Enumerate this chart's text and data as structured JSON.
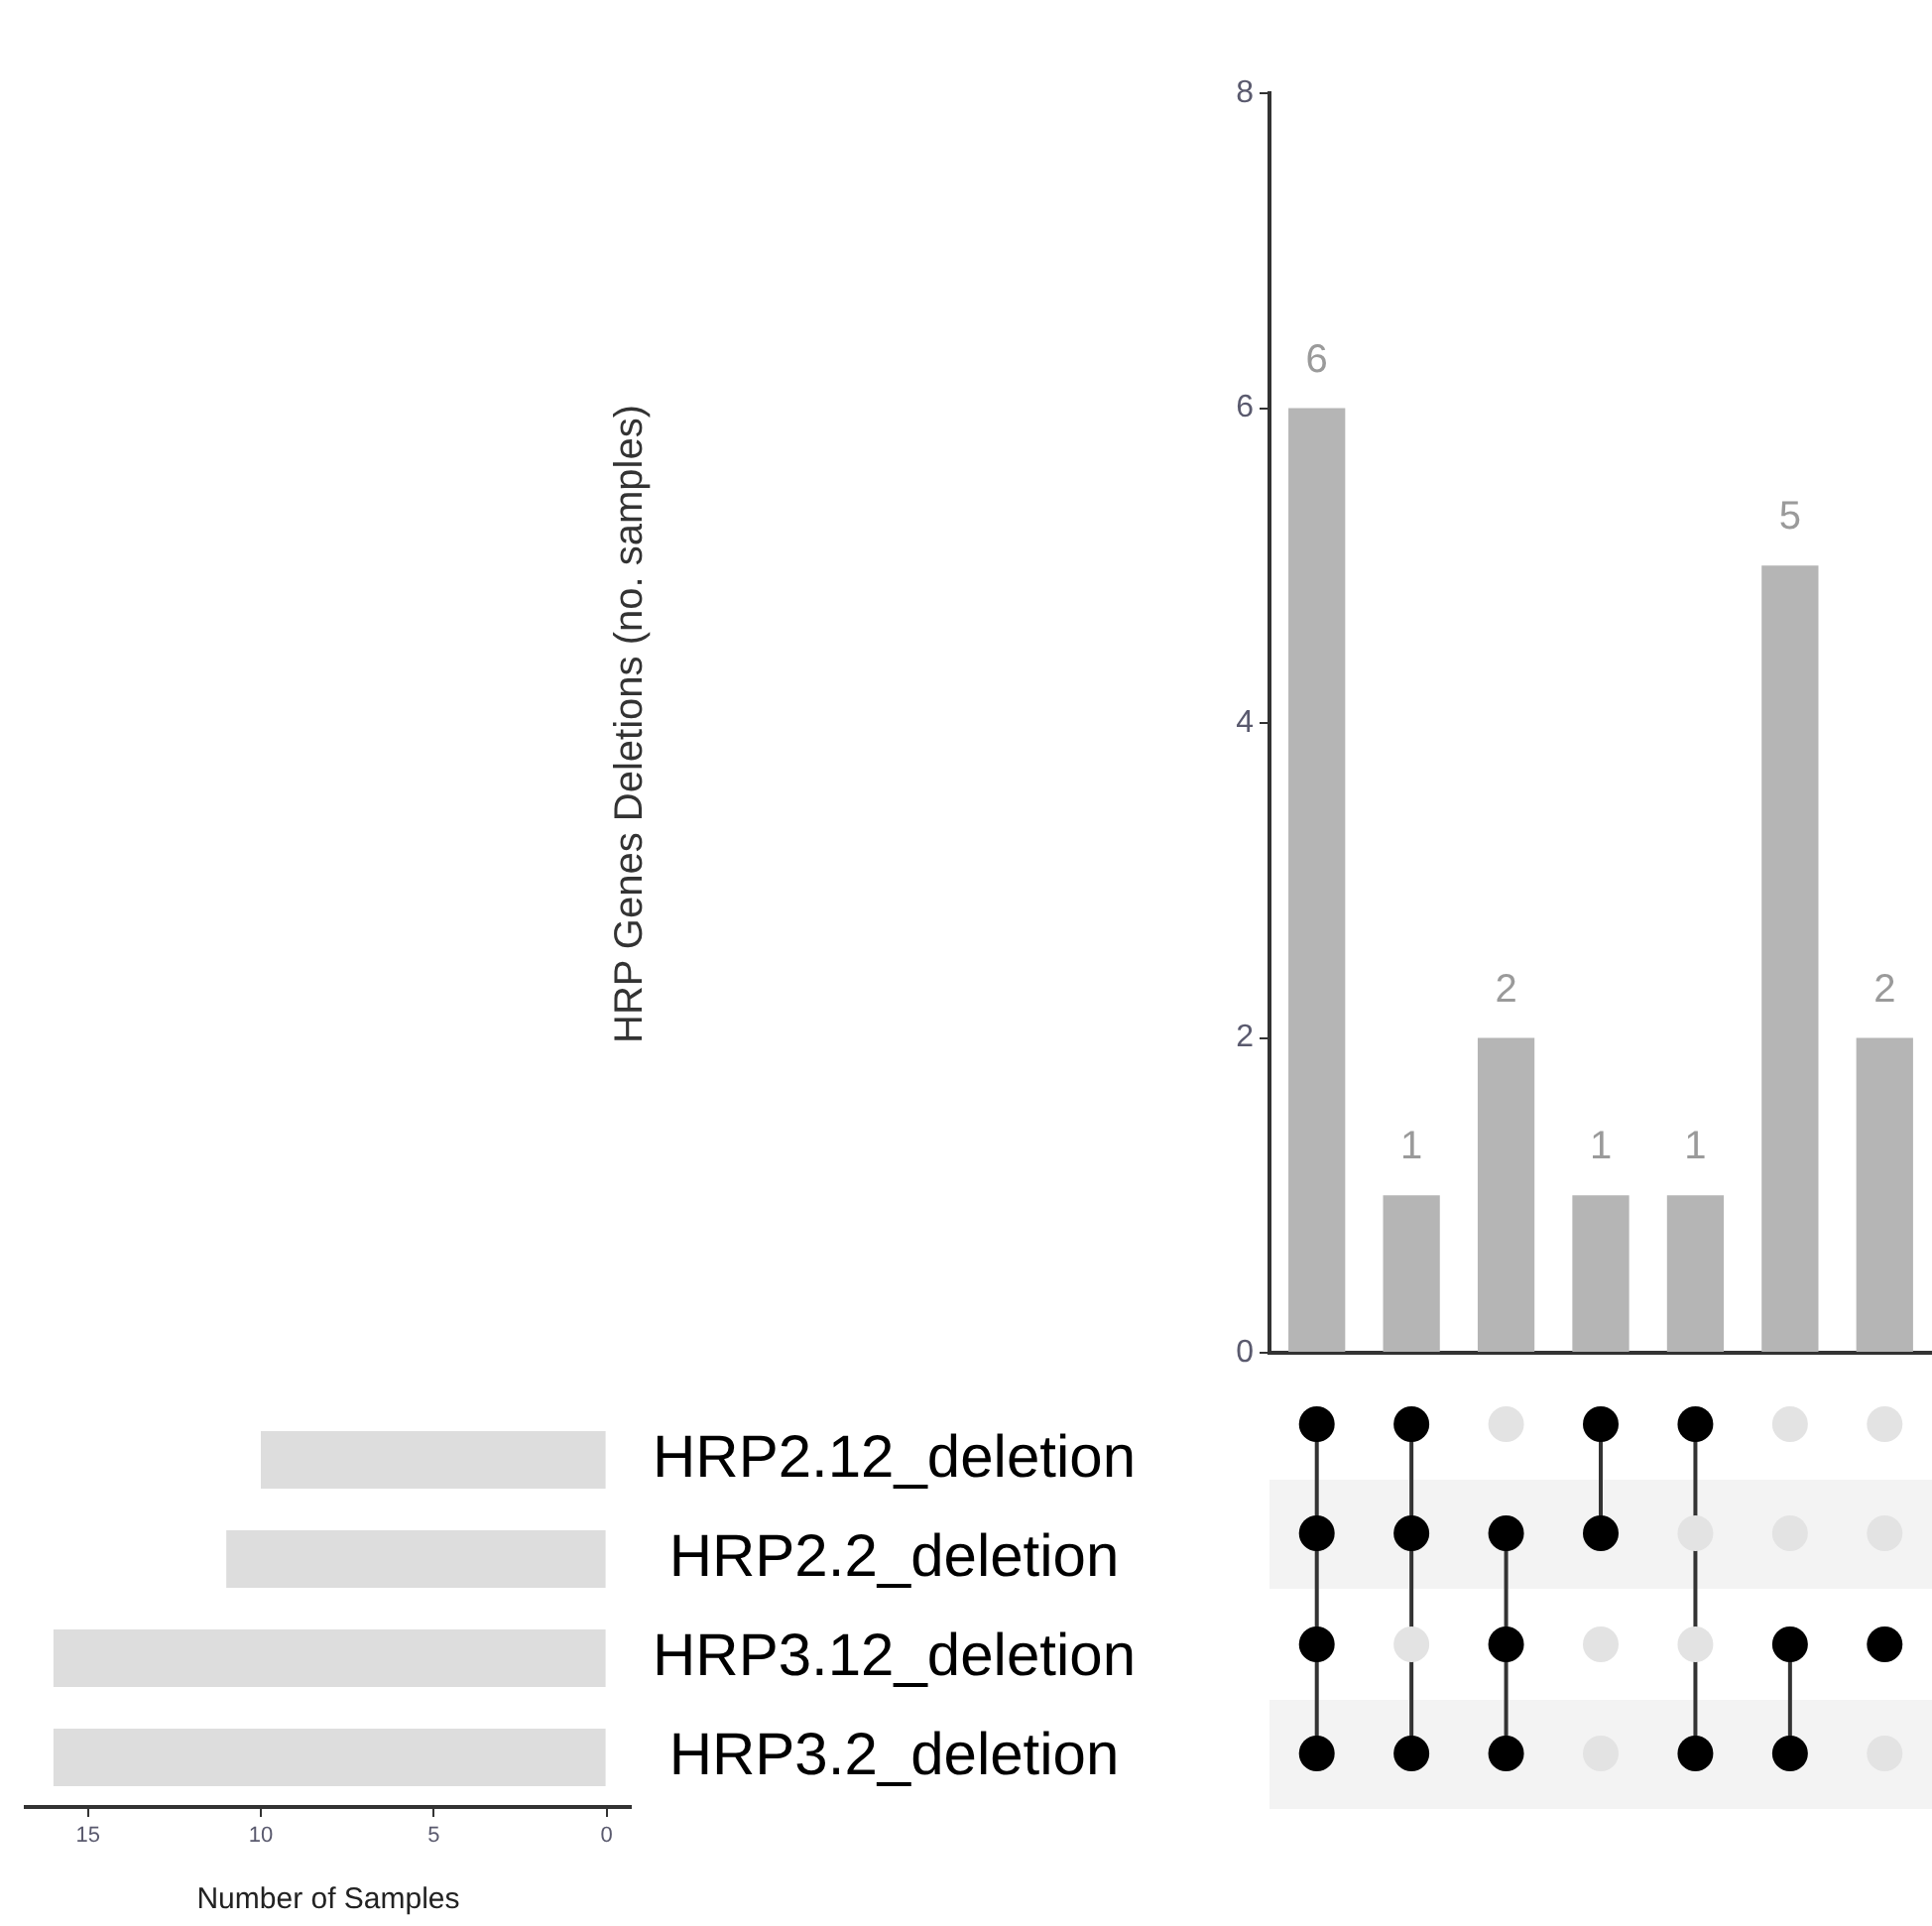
{
  "chart_data": [
    {
      "type": "bar",
      "categories": [
        null,
        null,
        null,
        null,
        null,
        null,
        null
      ],
      "values": [
        6,
        1,
        2,
        1,
        1,
        5,
        2
      ],
      "color": "#b5b5b5",
      "ylabel": "HRP Genes Deletions (no. samples)",
      "ylim": [
        0,
        8
      ],
      "yticks": [
        0,
        2,
        4,
        6,
        8
      ],
      "data_labels": true,
      "tick_labels": "y"
    },
    {
      "type": "bar",
      "orientation": "horizontal",
      "categories": [
        "HRP2.12_deletion",
        "HRP2.2_deletion",
        "HRP3.12_deletion",
        "HRP3.2_deletion"
      ],
      "values": [
        10,
        11,
        16,
        16
      ],
      "color": "#dddddd",
      "xlabel": "Number of Samples",
      "xlim": [
        16.8,
        -0.7
      ],
      "xticks": [
        15,
        10,
        5,
        0
      ]
    }
  ]
}
